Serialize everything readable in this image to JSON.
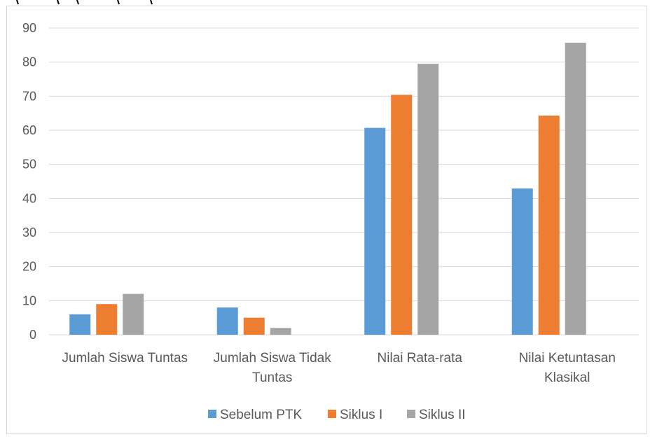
{
  "chart_data": {
    "type": "bar",
    "categories": [
      [
        "Jumlah Siswa Tuntas"
      ],
      [
        "Jumlah Siswa Tidak",
        "Tuntas"
      ],
      [
        "Nilai Rata-rata"
      ],
      [
        "Nilai Ketuntasan",
        "Klasikal"
      ]
    ],
    "series": [
      {
        "name": "Sebelum PTK",
        "color": "#5b9bd5",
        "values": [
          6,
          8,
          60.7,
          42.9
        ]
      },
      {
        "name": "Siklus I",
        "color": "#ed7d31",
        "values": [
          9,
          5,
          70.4,
          64.3
        ]
      },
      {
        "name": "Siklus II",
        "color": "#a5a5a5",
        "values": [
          12,
          2,
          79.5,
          85.7
        ]
      }
    ],
    "ylim": [
      0,
      90
    ],
    "yticks": [
      0,
      10,
      20,
      30,
      40,
      50,
      60,
      70,
      80,
      90
    ],
    "grid": true,
    "legend_position": "bottom"
  }
}
